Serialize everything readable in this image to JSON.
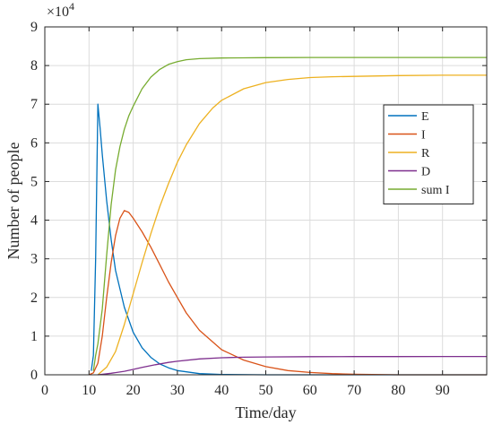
{
  "chart_data": {
    "type": "line",
    "title": "",
    "xlabel": "Time/day",
    "ylabel": "Number of people",
    "xlim": [
      0,
      100
    ],
    "ylim": [
      0,
      90000
    ],
    "x_ticks": [
      0,
      10,
      20,
      30,
      40,
      50,
      60,
      70,
      80,
      90
    ],
    "y_ticks": [
      0,
      1,
      2,
      3,
      4,
      5,
      6,
      7,
      8,
      9
    ],
    "y_multiplier": {
      "base": "×10",
      "exponent": "4"
    },
    "grid": true,
    "legend_position": "right-center",
    "series": [
      {
        "name": "E",
        "color": "#0072BD",
        "x": [
          10.5,
          11,
          11.5,
          12,
          12.5,
          13,
          14,
          15,
          16,
          18,
          20,
          22,
          24,
          26,
          28,
          30,
          35,
          40,
          50,
          60,
          70,
          80,
          90,
          100
        ],
        "y": [
          1000,
          5000,
          30000,
          70000,
          64000,
          57000,
          45000,
          35000,
          27000,
          17500,
          11000,
          7000,
          4500,
          2800,
          1800,
          1100,
          300,
          100,
          0,
          0,
          0,
          0,
          0,
          0
        ]
      },
      {
        "name": "I",
        "color": "#D95319",
        "x": [
          10,
          11,
          12,
          13,
          14,
          15,
          16,
          17,
          18,
          19,
          20,
          22,
          24,
          26,
          28,
          30,
          32,
          35,
          40,
          45,
          50,
          55,
          60,
          65,
          70,
          80,
          90,
          100
        ],
        "y": [
          0,
          500,
          3000,
          10000,
          20000,
          29000,
          36000,
          40500,
          42500,
          42000,
          40500,
          37000,
          33000,
          28500,
          24000,
          20000,
          16000,
          11500,
          6500,
          3800,
          2100,
          1100,
          600,
          300,
          150,
          0,
          0,
          0
        ]
      },
      {
        "name": "R",
        "color": "#EDB120",
        "x": [
          12,
          14,
          16,
          18,
          20,
          22,
          24,
          26,
          28,
          30,
          32,
          35,
          38,
          40,
          45,
          50,
          55,
          60,
          65,
          70,
          80,
          90,
          100
        ],
        "y": [
          0,
          2000,
          6000,
          13000,
          21000,
          29000,
          36500,
          43500,
          49500,
          55000,
          59500,
          65000,
          69000,
          71000,
          74000,
          75600,
          76400,
          76900,
          77100,
          77200,
          77400,
          77500,
          77500
        ]
      },
      {
        "name": "D",
        "color": "#7E2F8E",
        "x": [
          12,
          15,
          18,
          20,
          22,
          25,
          28,
          30,
          35,
          40,
          45,
          50,
          60,
          70,
          80,
          90,
          100
        ],
        "y": [
          0,
          400,
          900,
          1400,
          1900,
          2600,
          3200,
          3500,
          4100,
          4400,
          4550,
          4620,
          4680,
          4700,
          4720,
          4730,
          4730
        ]
      },
      {
        "name": "sum I",
        "color": "#77AC30",
        "x": [
          11,
          11.5,
          12,
          13,
          14,
          15,
          16,
          17,
          18,
          19,
          20,
          22,
          24,
          26,
          28,
          30,
          32,
          35,
          40,
          45,
          50,
          60,
          70,
          80,
          90,
          100
        ],
        "y": [
          1000,
          5000,
          8000,
          17000,
          31000,
          44000,
          53000,
          59000,
          63500,
          67000,
          69500,
          74000,
          77000,
          79000,
          80300,
          81000,
          81500,
          81800,
          81950,
          82000,
          82050,
          82100,
          82100,
          82100,
          82100,
          82100
        ]
      }
    ]
  }
}
